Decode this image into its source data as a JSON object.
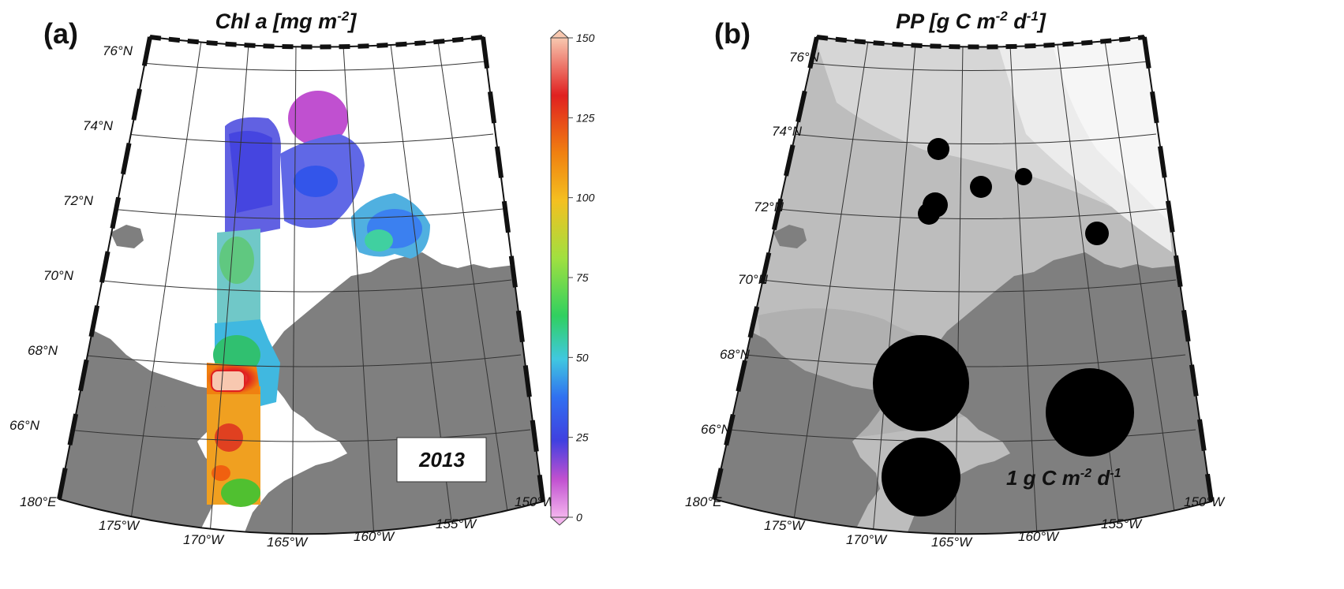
{
  "panel_a": {
    "label": "(a)",
    "title_main": "Chl a [mg m",
    "title_sup": "-2",
    "title_end": "]",
    "year": "2013",
    "colorbar": {
      "ticks": [
        "150",
        "125",
        "100",
        "75",
        "50",
        "25",
        "0"
      ],
      "tick_values": [
        150,
        125,
        100,
        75,
        50,
        25,
        0
      ],
      "range": [
        0,
        150
      ],
      "colors": [
        "#f0a0e8",
        "#c050d0",
        "#4040e0",
        "#3060f0",
        "#40c0e0",
        "#50d8b0",
        "#30d030",
        "#b0e040",
        "#f0c020",
        "#f08010",
        "#e02020",
        "#f8c0b0"
      ]
    }
  },
  "panel_b": {
    "label": "(b)",
    "title_main": "PP [g C m",
    "title_sup1": "-2",
    "title_mid": " d",
    "title_sup2": "-1",
    "title_end": "]",
    "legend_main": "1 g C m",
    "legend_sup1": "-2",
    "legend_mid": " d",
    "legend_sup2": "-1"
  },
  "lat_labels": [
    "76°N",
    "74°N",
    "72°N",
    "70°N",
    "68°N",
    "66°N"
  ],
  "lon_labels": [
    "180°E",
    "175°W",
    "170°W",
    "165°W",
    "160°W",
    "155°W",
    "150°W"
  ],
  "colors": {
    "land": "#7f7f7f",
    "ocean_a": "#ffffff",
    "grid": "#222222"
  }
}
